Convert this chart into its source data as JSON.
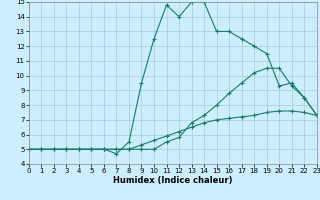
{
  "xlabel": "Humidex (Indice chaleur)",
  "bg_color": "#cceeff",
  "line_color": "#1a7a6a",
  "grid_color": "#aacccc",
  "xlim": [
    0,
    23
  ],
  "ylim": [
    4,
    15
  ],
  "xticks": [
    0,
    1,
    2,
    3,
    4,
    5,
    6,
    7,
    8,
    9,
    10,
    11,
    12,
    13,
    14,
    15,
    16,
    17,
    18,
    19,
    20,
    21,
    22,
    23
  ],
  "yticks": [
    4,
    5,
    6,
    7,
    8,
    9,
    10,
    11,
    12,
    13,
    14,
    15
  ],
  "line1_x": [
    0,
    1,
    2,
    3,
    4,
    5,
    6,
    7,
    8,
    9,
    10,
    11,
    12,
    13,
    14,
    15,
    16,
    17,
    18,
    19,
    20,
    21,
    22,
    23
  ],
  "line1_y": [
    5,
    5,
    5,
    5,
    5,
    5,
    5,
    4.7,
    5.5,
    9.5,
    12.5,
    14.8,
    14.0,
    15.0,
    15.0,
    13.0,
    13.0,
    12.5,
    12.0,
    11.5,
    9.3,
    9.5,
    8.5,
    7.3
  ],
  "line2_x": [
    0,
    1,
    2,
    3,
    4,
    5,
    6,
    7,
    8,
    9,
    10,
    11,
    12,
    13,
    14,
    15,
    16,
    17,
    18,
    19,
    20,
    21,
    22,
    23
  ],
  "line2_y": [
    5,
    5,
    5,
    5,
    5,
    5,
    5,
    5,
    5,
    5,
    5,
    5.5,
    5.8,
    6.8,
    7.3,
    8.0,
    8.8,
    9.5,
    10.2,
    10.5,
    10.5,
    9.3,
    8.5,
    7.3
  ],
  "line3_x": [
    0,
    1,
    2,
    3,
    4,
    5,
    6,
    7,
    8,
    9,
    10,
    11,
    12,
    13,
    14,
    15,
    16,
    17,
    18,
    19,
    20,
    21,
    22,
    23
  ],
  "line3_y": [
    5,
    5,
    5,
    5,
    5,
    5,
    5,
    5,
    5,
    5.3,
    5.6,
    5.9,
    6.2,
    6.5,
    6.8,
    7.0,
    7.1,
    7.2,
    7.3,
    7.5,
    7.6,
    7.6,
    7.5,
    7.3
  ]
}
